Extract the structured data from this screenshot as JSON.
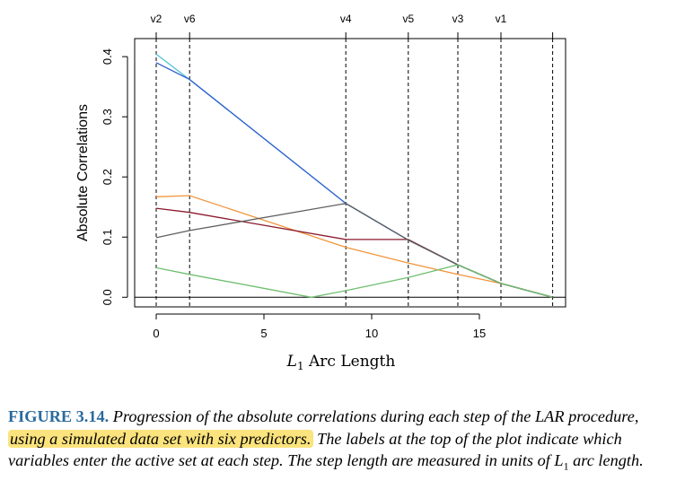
{
  "chart_data": {
    "type": "line",
    "title": "",
    "xlabel": "L1 Arc Length",
    "xlabel_main": "L",
    "xlabel_sub": "1",
    "xlabel_rest": " Arc Length",
    "ylabel": "Absolute Correlations",
    "xlim": [
      -1,
      19
    ],
    "ylim": [
      -0.016,
      0.43
    ],
    "xticks": [
      0,
      5,
      10,
      15
    ],
    "yticks": [
      0.0,
      0.1,
      0.2,
      0.3,
      0.4
    ],
    "ytick_labels": [
      "0.0",
      "0.1",
      "0.2",
      "0.3",
      "0.4"
    ],
    "xtick_labels": [
      "0",
      "5",
      "10",
      "15"
    ],
    "steps": [
      0,
      1.55,
      8.8,
      11.7,
      14,
      16,
      18.4
    ],
    "step_labels": [
      "v2",
      "v6",
      "v4",
      "v5",
      "v3",
      "v1",
      ""
    ],
    "zero_line": true,
    "grid": false,
    "legend": "none",
    "series": [
      {
        "color": "#4fc3d6",
        "x": [
          0,
          1.55,
          8.8,
          11.7,
          14,
          16,
          18.4
        ],
        "y": [
          0.404,
          0.362,
          0.156,
          0.095,
          0.054,
          0.023,
          0.0
        ]
      },
      {
        "color": "#2f5fcf",
        "x": [
          0,
          1.55,
          8.8,
          11.7,
          14,
          16,
          18.4
        ],
        "y": [
          0.39,
          0.362,
          0.156,
          0.095,
          0.054,
          0.023,
          0.0
        ]
      },
      {
        "color": "#f0963c",
        "x": [
          0,
          1.55,
          8.8,
          11.7,
          14,
          16,
          18.4
        ],
        "y": [
          0.167,
          0.169,
          0.083,
          0.057,
          0.038,
          0.023,
          0.0
        ]
      },
      {
        "color": "#8b1a2b",
        "x": [
          0,
          1.55,
          8.8,
          11.7,
          14,
          16,
          18.4
        ],
        "y": [
          0.148,
          0.141,
          0.096,
          0.096,
          0.054,
          0.023,
          0.0
        ]
      },
      {
        "color": "#606060",
        "x": [
          0,
          1.55,
          8.8,
          11.7,
          14,
          16,
          18.4
        ],
        "y": [
          0.099,
          0.111,
          0.156,
          0.095,
          0.054,
          0.023,
          0.0
        ]
      },
      {
        "color": "#6fbf6f",
        "x": [
          0,
          1.55,
          7.2,
          8.8,
          11.7,
          14,
          16,
          18.4
        ],
        "y": [
          0.049,
          0.038,
          0.0,
          0.011,
          0.033,
          0.054,
          0.023,
          0.0
        ]
      }
    ]
  },
  "caption": {
    "label": "FIGURE 3.14.",
    "text_before": " Progression of the absolute correlations during each step of the LAR procedure, ",
    "highlight": "using a simulated data set with six predictors.",
    "text_after_1": " The labels at the top of the plot indicate which variables enter the active set at each step. The step length are measured in units of ",
    "l1_main": "L",
    "l1_sub": "1",
    "text_after_2": " arc length."
  }
}
